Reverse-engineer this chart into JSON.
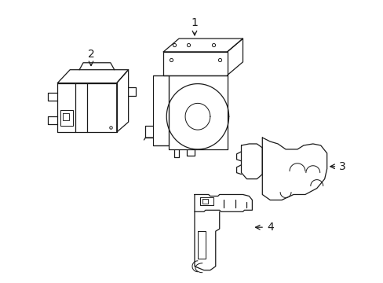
{
  "background_color": "#ffffff",
  "line_color": "#1a1a1a",
  "line_width": 0.9,
  "label_fontsize": 9,
  "figsize": [
    4.89,
    3.6
  ],
  "dpi": 100
}
